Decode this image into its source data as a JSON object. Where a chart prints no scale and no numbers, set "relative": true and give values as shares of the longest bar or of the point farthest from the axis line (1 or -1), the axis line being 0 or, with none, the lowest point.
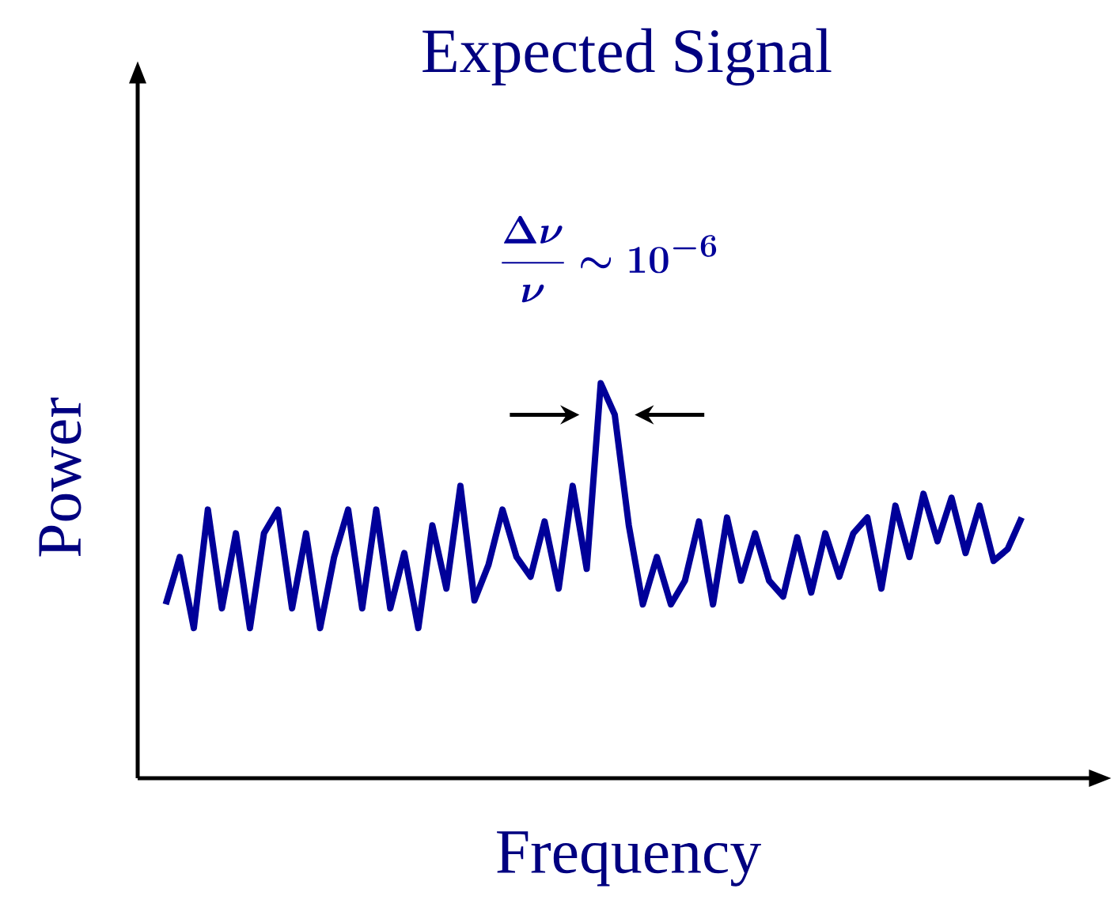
{
  "chart_data": {
    "type": "line",
    "title": "Expected Signal",
    "xlabel": "Frequency",
    "ylabel": "Power",
    "annotations": [
      "\\frac{\\Delta\\nu}{\\nu}\\sim 10^{-6}"
    ],
    "relative": true,
    "categories": [
      null,
      null,
      null,
      null,
      null,
      null,
      null,
      null,
      null,
      null,
      null,
      null,
      null,
      null,
      null,
      null,
      null,
      null,
      null,
      null,
      null,
      null,
      null,
      null,
      null,
      null,
      null,
      null,
      null,
      null,
      null,
      null,
      null,
      null,
      null,
      null,
      null,
      null,
      null,
      null,
      null,
      null,
      null,
      null,
      null,
      null,
      null,
      null,
      null,
      null,
      null,
      null,
      null,
      null,
      null,
      null,
      null,
      null,
      null,
      null,
      null,
      null
    ],
    "series": [
      {
        "color": "#000099",
        "values": [
          0.44,
          0.56,
          0.38,
          0.68,
          0.43,
          0.62,
          0.38,
          0.62,
          0.68,
          0.43,
          0.62,
          0.38,
          0.56,
          0.68,
          0.43,
          0.68,
          0.43,
          0.57,
          0.38,
          0.64,
          0.48,
          0.74,
          0.45,
          0.54,
          0.68,
          0.56,
          0.51,
          0.65,
          0.48,
          0.74,
          0.53,
          1,
          0.92,
          0.64,
          0.44,
          0.56,
          0.44,
          0.5,
          0.65,
          0.44,
          0.66,
          0.5,
          0.62,
          0.5,
          0.46,
          0.61,
          0.47,
          0.62,
          0.51,
          0.62,
          0.66,
          0.48,
          0.69,
          0.56,
          0.72,
          0.6,
          0.71,
          0.57,
          0.69,
          0.55,
          0.58,
          0.66
        ]
      }
    ]
  }
}
